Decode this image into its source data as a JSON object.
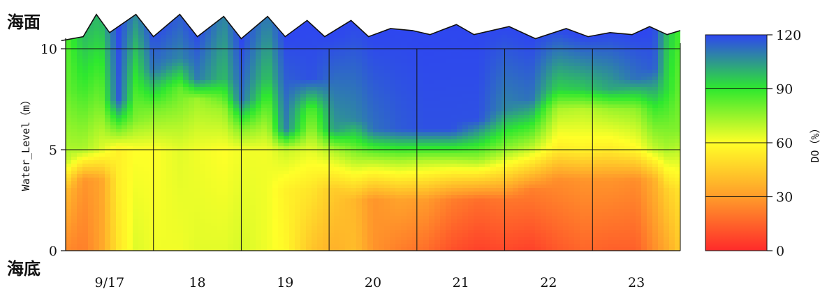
{
  "chart_data": {
    "type": "heatmap",
    "top_label": "海面",
    "bottom_label": "海底",
    "ylabel": "Water_Level（m）",
    "y_ticks": [
      {
        "value": 0,
        "label": "0"
      },
      {
        "value": 5,
        "label": "5"
      },
      {
        "value": 10,
        "label": "10"
      }
    ],
    "ylim": [
      0,
      12
    ],
    "x_ticks": [
      {
        "day": 17,
        "label": "9/17"
      },
      {
        "day": 18,
        "label": "18"
      },
      {
        "day": 19,
        "label": "19"
      },
      {
        "day": 20,
        "label": "20"
      },
      {
        "day": 21,
        "label": "21"
      },
      {
        "day": 22,
        "label": "22"
      },
      {
        "day": 23,
        "label": "23"
      }
    ],
    "xlim_days": [
      16.5,
      23.5
    ],
    "colorbar": {
      "label": "DO（%）",
      "ticks": [
        0,
        30,
        60,
        90,
        120
      ],
      "range": [
        0,
        120
      ],
      "colors": [
        "#ff2a2a",
        "#ff9c2a",
        "#ffff28",
        "#2ee82e",
        "#2e46f0"
      ]
    },
    "surface_profile": [
      [
        16.45,
        10.4
      ],
      [
        16.7,
        10.6
      ],
      [
        16.85,
        11.7
      ],
      [
        17.0,
        10.8
      ],
      [
        17.3,
        11.7
      ],
      [
        17.5,
        10.6
      ],
      [
        17.8,
        11.7
      ],
      [
        18.0,
        10.6
      ],
      [
        18.3,
        11.6
      ],
      [
        18.5,
        10.5
      ],
      [
        18.8,
        11.6
      ],
      [
        19.0,
        10.6
      ],
      [
        19.25,
        11.4
      ],
      [
        19.45,
        10.6
      ],
      [
        19.75,
        11.4
      ],
      [
        19.95,
        10.6
      ],
      [
        20.2,
        11.0
      ],
      [
        20.45,
        10.9
      ],
      [
        20.65,
        10.7
      ],
      [
        20.95,
        11.2
      ],
      [
        21.15,
        10.7
      ],
      [
        21.55,
        11.1
      ],
      [
        21.85,
        10.5
      ],
      [
        22.2,
        11.0
      ],
      [
        22.45,
        10.6
      ],
      [
        22.7,
        10.8
      ],
      [
        22.95,
        10.7
      ],
      [
        23.15,
        11.1
      ],
      [
        23.35,
        10.7
      ],
      [
        23.5,
        10.9
      ]
    ],
    "do_profiles": [
      {
        "day": 16.5,
        "profile": [
          [
            0,
            25
          ],
          [
            3,
            40
          ],
          [
            4.5,
            70
          ],
          [
            8,
            82
          ],
          [
            10.5,
            84
          ]
        ]
      },
      {
        "day": 16.7,
        "profile": [
          [
            0,
            22
          ],
          [
            3.5,
            28
          ],
          [
            5,
            72
          ],
          [
            8,
            88
          ],
          [
            11,
            100
          ]
        ]
      },
      {
        "day": 16.9,
        "profile": [
          [
            0,
            32
          ],
          [
            3.5,
            32
          ],
          [
            5,
            65
          ],
          [
            7.5,
            80
          ],
          [
            11.8,
            100
          ]
        ]
      },
      {
        "day": 17.1,
        "profile": [
          [
            0,
            52
          ],
          [
            5,
            56
          ],
          [
            6,
            80
          ],
          [
            7.5,
            116
          ],
          [
            11,
            120
          ]
        ]
      },
      {
        "day": 17.3,
        "profile": [
          [
            0,
            65
          ],
          [
            5,
            60
          ],
          [
            6.5,
            78
          ],
          [
            9,
            92
          ],
          [
            11.8,
            108
          ]
        ]
      },
      {
        "day": 17.5,
        "profile": [
          [
            0,
            62
          ],
          [
            5,
            60
          ],
          [
            7,
            80
          ],
          [
            9,
            112
          ],
          [
            11,
            120
          ]
        ]
      },
      {
        "day": 17.8,
        "profile": [
          [
            0,
            62
          ],
          [
            5,
            64
          ],
          [
            8,
            82
          ],
          [
            9.5,
            108
          ],
          [
            11.7,
            116
          ]
        ]
      },
      {
        "day": 18.0,
        "profile": [
          [
            0,
            64
          ],
          [
            5,
            62
          ],
          [
            7.5,
            74
          ],
          [
            8.5,
            110
          ],
          [
            11,
            120
          ]
        ]
      },
      {
        "day": 18.3,
        "profile": [
          [
            0,
            64
          ],
          [
            5,
            60
          ],
          [
            7,
            74
          ],
          [
            8.5,
            98
          ],
          [
            11.6,
            108
          ]
        ]
      },
      {
        "day": 18.5,
        "profile": [
          [
            0,
            66
          ],
          [
            5,
            62
          ],
          [
            6,
            78
          ],
          [
            7.5,
            112
          ],
          [
            10.5,
            120
          ]
        ]
      },
      {
        "day": 18.8,
        "profile": [
          [
            0,
            62
          ],
          [
            5,
            62
          ],
          [
            7,
            80
          ],
          [
            8.5,
            96
          ],
          [
            11.6,
            110
          ]
        ]
      },
      {
        "day": 19.0,
        "profile": [
          [
            0,
            58
          ],
          [
            3,
            56
          ],
          [
            5,
            68
          ],
          [
            6,
            110
          ],
          [
            10.6,
            120
          ]
        ]
      },
      {
        "day": 19.3,
        "profile": [
          [
            0,
            42
          ],
          [
            3,
            52
          ],
          [
            5,
            64
          ],
          [
            7,
            84
          ],
          [
            8.5,
            118
          ],
          [
            11.4,
            120
          ]
        ]
      },
      {
        "day": 19.55,
        "profile": [
          [
            0,
            36
          ],
          [
            3,
            44
          ],
          [
            5,
            72
          ],
          [
            6,
            104
          ],
          [
            10.6,
            120
          ]
        ]
      },
      {
        "day": 19.8,
        "profile": [
          [
            0,
            40
          ],
          [
            2.5,
            38
          ],
          [
            5,
            80
          ],
          [
            6.5,
            108
          ],
          [
            11.4,
            120
          ]
        ]
      },
      {
        "day": 20.0,
        "profile": [
          [
            0,
            28
          ],
          [
            2.5,
            28
          ],
          [
            4.5,
            72
          ],
          [
            6,
            112
          ],
          [
            10.6,
            120
          ]
        ]
      },
      {
        "day": 20.3,
        "profile": [
          [
            0,
            22
          ],
          [
            2.5,
            32
          ],
          [
            4.5,
            74
          ],
          [
            6,
            116
          ],
          [
            11,
            120
          ]
        ]
      },
      {
        "day": 20.6,
        "profile": [
          [
            0,
            18
          ],
          [
            2.5,
            30
          ],
          [
            4.5,
            72
          ],
          [
            6,
            118
          ],
          [
            10.7,
            120
          ]
        ]
      },
      {
        "day": 20.9,
        "profile": [
          [
            0,
            10
          ],
          [
            2.5,
            22
          ],
          [
            4.5,
            72
          ],
          [
            6,
            118
          ],
          [
            11.2,
            120
          ]
        ]
      },
      {
        "day": 21.2,
        "profile": [
          [
            0,
            6
          ],
          [
            2.5,
            18
          ],
          [
            4.5,
            74
          ],
          [
            6.5,
            118
          ],
          [
            10.8,
            120
          ]
        ]
      },
      {
        "day": 21.5,
        "profile": [
          [
            0,
            8
          ],
          [
            2.5,
            20
          ],
          [
            5,
            76
          ],
          [
            7,
            108
          ],
          [
            11.1,
            120
          ]
        ]
      },
      {
        "day": 21.8,
        "profile": [
          [
            0,
            6
          ],
          [
            3,
            22
          ],
          [
            5,
            68
          ],
          [
            7.5,
            112
          ],
          [
            10.5,
            120
          ]
        ]
      },
      {
        "day": 22.1,
        "profile": [
          [
            0,
            12
          ],
          [
            3.5,
            26
          ],
          [
            5,
            54
          ],
          [
            7,
            72
          ],
          [
            8,
            94
          ],
          [
            11,
            120
          ]
        ]
      },
      {
        "day": 22.4,
        "profile": [
          [
            0,
            16
          ],
          [
            3.5,
            28
          ],
          [
            5,
            56
          ],
          [
            7,
            70
          ],
          [
            8,
            96
          ],
          [
            10.6,
            120
          ]
        ]
      },
      {
        "day": 22.7,
        "profile": [
          [
            0,
            14
          ],
          [
            3.5,
            28
          ],
          [
            5,
            54
          ],
          [
            7,
            74
          ],
          [
            8,
            102
          ],
          [
            10.8,
            120
          ]
        ]
      },
      {
        "day": 23.0,
        "profile": [
          [
            0,
            14
          ],
          [
            3.5,
            26
          ],
          [
            5,
            58
          ],
          [
            7,
            76
          ],
          [
            8.5,
            112
          ],
          [
            10.7,
            120
          ]
        ]
      },
      {
        "day": 23.2,
        "profile": [
          [
            0,
            26
          ],
          [
            3.5,
            36
          ],
          [
            5,
            68
          ],
          [
            7,
            88
          ],
          [
            9,
            116
          ],
          [
            11.1,
            120
          ]
        ]
      },
      {
        "day": 23.35,
        "profile": [
          [
            0,
            34
          ],
          [
            3,
            46
          ],
          [
            5,
            72
          ],
          [
            8,
            92
          ],
          [
            11.2,
            98
          ]
        ]
      },
      {
        "day": 23.5,
        "profile": [
          [
            0,
            44
          ],
          [
            3,
            52
          ],
          [
            6,
            78
          ],
          [
            10.9,
            86
          ]
        ]
      }
    ]
  }
}
